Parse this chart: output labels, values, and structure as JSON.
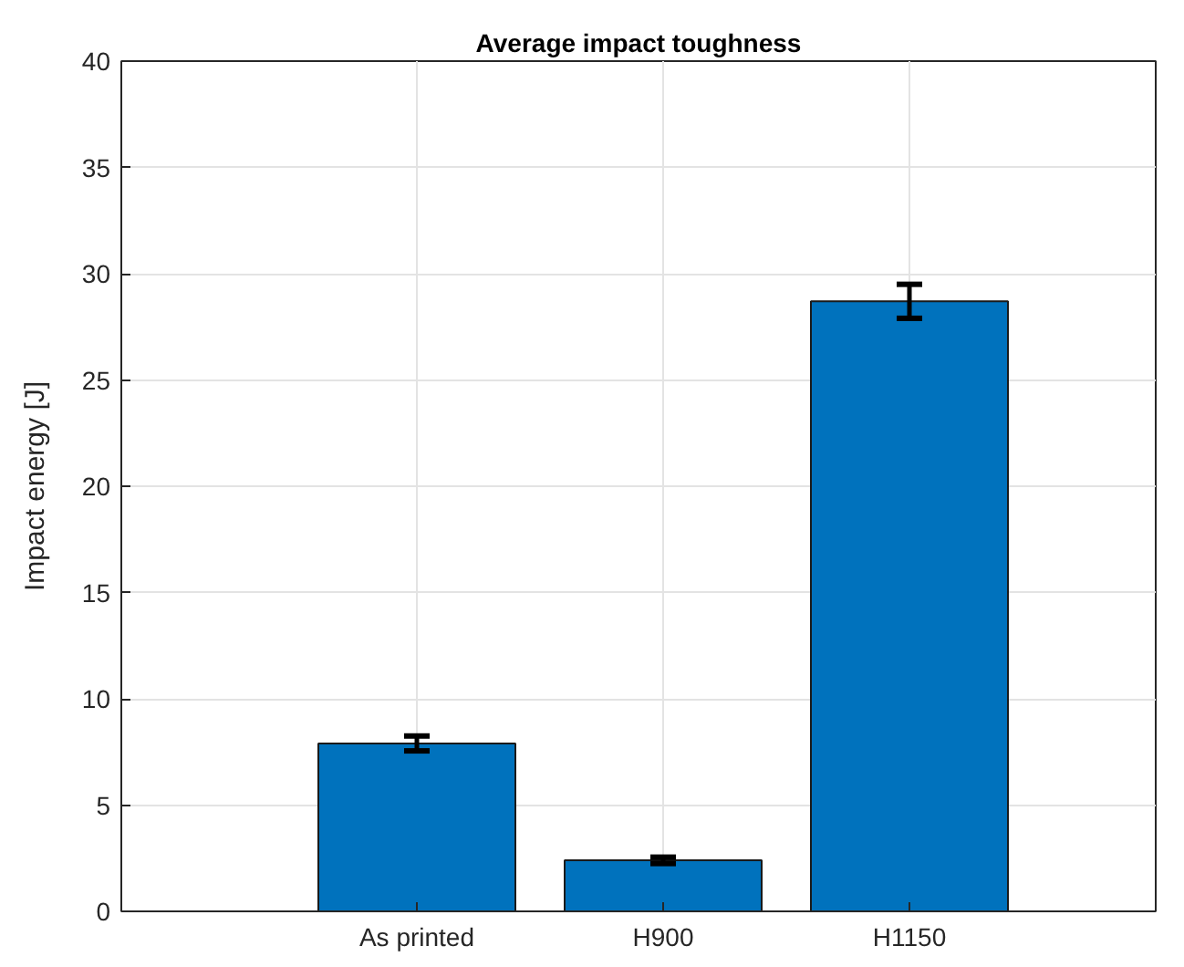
{
  "chart_data": {
    "type": "bar",
    "title": "Average impact toughness",
    "ylabel": "Impact energy [J]",
    "categories": [
      "As printed",
      "H900",
      "H1150"
    ],
    "values": [
      7.9,
      2.4,
      28.7
    ],
    "errors": [
      0.35,
      0.15,
      0.8
    ],
    "color": "#0072bd",
    "ylim": [
      0,
      40
    ],
    "yticks": [
      0,
      5,
      10,
      15,
      20,
      25,
      30,
      35,
      40
    ],
    "grid": true
  }
}
